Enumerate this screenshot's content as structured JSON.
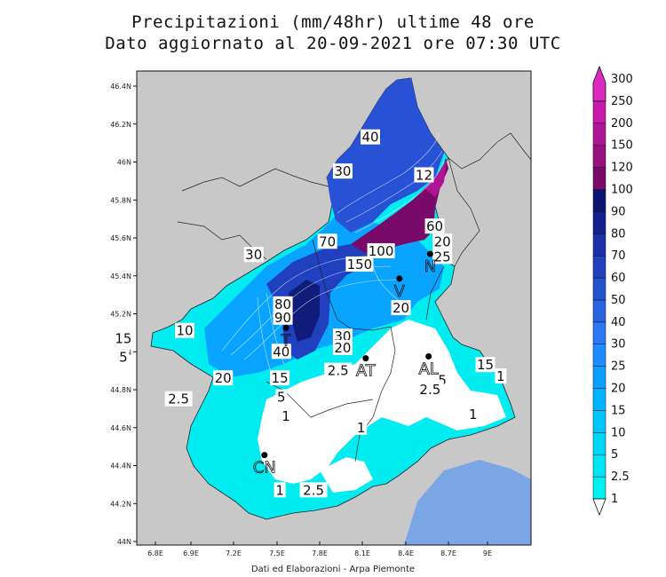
{
  "title_line1": "Precipitazioni (mm/48hr) ultime 48 ore",
  "title_line2": "Dato aggiornato al 20-09-2021 ore 07:30 UTC",
  "credit": "Dati ed Elaborazioni - Arpa Piemonte",
  "map": {
    "lon_ticks": [
      6.8,
      6.9,
      7.2,
      7.5,
      7.8,
      8.1,
      8.4,
      8.7,
      9.0
    ],
    "lon_labels": [
      "6.8E",
      "6.9E",
      "7.2E",
      "7.5E",
      "7.8E",
      "8.1E",
      "8.4E",
      "8.7E",
      "9E"
    ],
    "lat_ticks": [
      44.0,
      44.2,
      44.4,
      44.6,
      44.8,
      45.0,
      45.2,
      45.4,
      45.6,
      45.8,
      46.0,
      46.2,
      46.4
    ],
    "lat_labels": [
      "44N",
      "44.2N",
      "44.4N",
      "44.6N",
      "44.8N",
      "45N",
      "45.2N",
      "45.4N",
      "45.6N",
      "45.8N",
      "46N",
      "46.2N",
      "46.4N"
    ],
    "background_color": "#c8c8c8",
    "sea_color": "#7aa6e6"
  },
  "colorbar": {
    "levels": [
      "1",
      "2.5",
      "5",
      "10",
      "15",
      "20",
      "25",
      "30",
      "40",
      "50",
      "60",
      "70",
      "80",
      "90",
      "100",
      "120",
      "150",
      "200",
      "250",
      "300"
    ],
    "colors": [
      "#00f0f0",
      "#00e4f4",
      "#00d6f8",
      "#00c6fc",
      "#00b4ff",
      "#0aa0ff",
      "#1e8cff",
      "#2a78f2",
      "#2864e0",
      "#2452ce",
      "#2040bc",
      "#1c30a8",
      "#14208c",
      "#0c1670",
      "#7a0a6a",
      "#96107e",
      "#b01496",
      "#c61aa8",
      "#dc2abe"
    ]
  },
  "contour_labels": [
    {
      "text": "40",
      "lon": 8.23,
      "lat": 46.13
    },
    {
      "text": "30",
      "lon": 8.05,
      "lat": 45.95
    },
    {
      "text": "12",
      "lon": 8.58,
      "lat": 45.93
    },
    {
      "text": "60",
      "lon": 8.65,
      "lat": 45.66
    },
    {
      "text": "20",
      "lon": 8.7,
      "lat": 45.58
    },
    {
      "text": "70",
      "lon": 7.95,
      "lat": 45.58
    },
    {
      "text": "100",
      "lon": 8.3,
      "lat": 45.53
    },
    {
      "text": "150",
      "lon": 8.16,
      "lat": 45.46
    },
    {
      "text": "25",
      "lon": 8.7,
      "lat": 45.5
    },
    {
      "text": "30",
      "lon": 7.47,
      "lat": 45.51
    },
    {
      "text": "80",
      "lon": 7.66,
      "lat": 45.25
    },
    {
      "text": "90",
      "lon": 7.66,
      "lat": 45.18
    },
    {
      "text": "30",
      "lon": 8.05,
      "lat": 45.08
    },
    {
      "text": "20",
      "lon": 8.05,
      "lat": 45.02
    },
    {
      "text": "40",
      "lon": 7.65,
      "lat": 45.0
    },
    {
      "text": "20",
      "lon": 8.43,
      "lat": 45.23
    },
    {
      "text": "15",
      "lon": 6.62,
      "lat": 45.07
    },
    {
      "text": "5",
      "lon": 6.62,
      "lat": 44.97
    },
    {
      "text": "10",
      "lon": 7.02,
      "lat": 45.11
    },
    {
      "text": "20",
      "lon": 7.27,
      "lat": 44.86
    },
    {
      "text": "15",
      "lon": 7.64,
      "lat": 44.86
    },
    {
      "text": "5",
      "lon": 7.65,
      "lat": 44.76
    },
    {
      "text": "2.5",
      "lon": 8.02,
      "lat": 44.9
    },
    {
      "text": "2.5",
      "lon": 6.98,
      "lat": 44.75
    },
    {
      "text": "1",
      "lon": 7.68,
      "lat": 44.66
    },
    {
      "text": "1",
      "lon": 8.17,
      "lat": 44.6
    },
    {
      "text": "15",
      "lon": 8.98,
      "lat": 44.93
    },
    {
      "text": "5",
      "lon": 8.7,
      "lat": 44.85
    },
    {
      "text": "2.5",
      "lon": 8.62,
      "lat": 44.8
    },
    {
      "text": "1",
      "lon": 8.9,
      "lat": 44.67
    },
    {
      "text": "1",
      "lon": 9.08,
      "lat": 44.87
    },
    {
      "text": "1",
      "lon": 7.64,
      "lat": 44.27
    },
    {
      "text": "2.5",
      "lon": 7.86,
      "lat": 44.27
    }
  ],
  "cities": [
    {
      "text": "V",
      "lon": 8.42,
      "lat": 45.32
    },
    {
      "text": "N",
      "lon": 8.62,
      "lat": 45.45
    },
    {
      "text": "T",
      "lon": 7.68,
      "lat": 45.06
    },
    {
      "text": "AT",
      "lon": 8.2,
      "lat": 44.9
    },
    {
      "text": "AL",
      "lon": 8.61,
      "lat": 44.91
    },
    {
      "text": "CN",
      "lon": 7.54,
      "lat": 44.39
    }
  ]
}
